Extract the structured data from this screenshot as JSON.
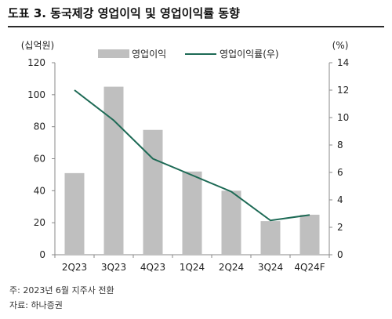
{
  "title": "도표 3. 동국제강 영업이익 및 영업이익률 동향",
  "note": "주: 2023년 6월 지주사 전환",
  "source": "자료: 하나증권",
  "colors": {
    "bar": "#bfbfbf",
    "line": "#1d6a55",
    "axis": "#888888",
    "rule": "#2b2b2b"
  },
  "chart_data": {
    "type": "bar",
    "categories": [
      "2Q23",
      "3Q23",
      "4Q23",
      "1Q24",
      "2Q24",
      "3Q24",
      "4Q24F"
    ],
    "series": [
      {
        "name": "영업이익",
        "type": "bar",
        "axis": "left",
        "values": [
          51,
          105,
          78,
          52,
          40,
          21,
          25
        ]
      },
      {
        "name": "영업이익률(우)",
        "type": "line",
        "axis": "right",
        "values": [
          12.0,
          9.8,
          7.0,
          5.8,
          4.6,
          2.5,
          2.9
        ]
      }
    ],
    "ylabel": "(십억원)",
    "y2label": "(%)",
    "ylim": [
      0,
      120
    ],
    "y2lim": [
      0,
      14
    ],
    "yticks": [
      0,
      20,
      40,
      60,
      80,
      100,
      120
    ],
    "y2ticks": [
      0,
      2,
      4,
      6,
      8,
      10,
      12,
      14
    ],
    "legend_position": "top-center",
    "grid": false
  }
}
